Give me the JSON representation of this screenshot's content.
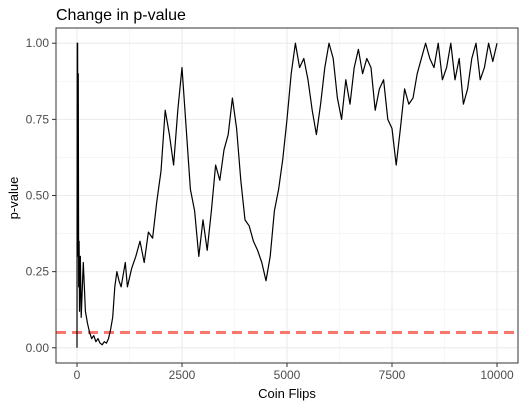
{
  "chart_data": {
    "type": "line",
    "title": "Change in p-value",
    "xlabel": "Coin Flips",
    "ylabel": "p-value",
    "xlim": [
      -500,
      10500
    ],
    "ylim": [
      -0.05,
      1.05
    ],
    "x_ticks": [
      0,
      2500,
      5000,
      7500,
      10000
    ],
    "x_tick_labels": [
      "0",
      "2500",
      "5000",
      "7500",
      "10000"
    ],
    "y_ticks": [
      0.0,
      0.25,
      0.5,
      0.75,
      1.0
    ],
    "y_tick_labels": [
      "0.00",
      "0.25",
      "0.50",
      "0.75",
      "1.00"
    ],
    "grid": true,
    "reference_line": {
      "y": 0.05,
      "style": "dashed",
      "color": "#f8766d"
    },
    "series": [
      {
        "color": "#000000",
        "x": [
          0,
          5,
          10,
          15,
          20,
          30,
          40,
          50,
          60,
          80,
          100,
          150,
          200,
          250,
          300,
          350,
          400,
          450,
          500,
          550,
          600,
          650,
          700,
          750,
          800,
          850,
          900,
          950,
          1000,
          1050,
          1100,
          1150,
          1200,
          1300,
          1400,
          1500,
          1600,
          1700,
          1800,
          1900,
          2000,
          2100,
          2200,
          2300,
          2400,
          2500,
          2600,
          2700,
          2800,
          2900,
          3000,
          3100,
          3200,
          3300,
          3400,
          3500,
          3600,
          3700,
          3800,
          3900,
          4000,
          4100,
          4200,
          4300,
          4400,
          4500,
          4600,
          4700,
          4800,
          4900,
          5000,
          5100,
          5200,
          5300,
          5400,
          5500,
          5600,
          5700,
          5800,
          5900,
          6000,
          6100,
          6200,
          6300,
          6400,
          6500,
          6600,
          6700,
          6800,
          6900,
          7000,
          7100,
          7200,
          7300,
          7400,
          7500,
          7600,
          7700,
          7800,
          7900,
          8000,
          8100,
          8200,
          8300,
          8400,
          8500,
          8600,
          8700,
          8800,
          8900,
          9000,
          9100,
          9200,
          9300,
          9400,
          9500,
          9600,
          9700,
          9800,
          9900,
          10000
        ],
        "y": [
          0.0,
          1.0,
          0.3,
          1.0,
          0.45,
          0.9,
          0.2,
          0.35,
          0.12,
          0.3,
          0.1,
          0.28,
          0.12,
          0.08,
          0.05,
          0.03,
          0.04,
          0.02,
          0.03,
          0.015,
          0.01,
          0.02,
          0.015,
          0.03,
          0.06,
          0.1,
          0.2,
          0.25,
          0.22,
          0.2,
          0.24,
          0.28,
          0.2,
          0.26,
          0.3,
          0.35,
          0.28,
          0.38,
          0.36,
          0.48,
          0.58,
          0.78,
          0.7,
          0.6,
          0.78,
          0.92,
          0.72,
          0.52,
          0.45,
          0.3,
          0.42,
          0.32,
          0.45,
          0.6,
          0.55,
          0.65,
          0.7,
          0.82,
          0.72,
          0.55,
          0.42,
          0.4,
          0.35,
          0.32,
          0.28,
          0.22,
          0.3,
          0.45,
          0.52,
          0.62,
          0.75,
          0.9,
          1.0,
          0.92,
          0.95,
          0.88,
          0.78,
          0.7,
          0.8,
          0.92,
          1.0,
          0.95,
          0.82,
          0.75,
          0.88,
          0.8,
          0.92,
          0.98,
          0.9,
          0.95,
          0.92,
          0.78,
          0.85,
          0.88,
          0.75,
          0.72,
          0.6,
          0.72,
          0.85,
          0.8,
          0.82,
          0.9,
          0.95,
          1.0,
          0.95,
          0.92,
          1.0,
          0.88,
          0.92,
          1.0,
          0.88,
          0.95,
          0.8,
          0.85,
          0.95,
          1.0,
          0.88,
          0.92,
          1.0,
          0.94,
          1.0
        ]
      }
    ]
  }
}
